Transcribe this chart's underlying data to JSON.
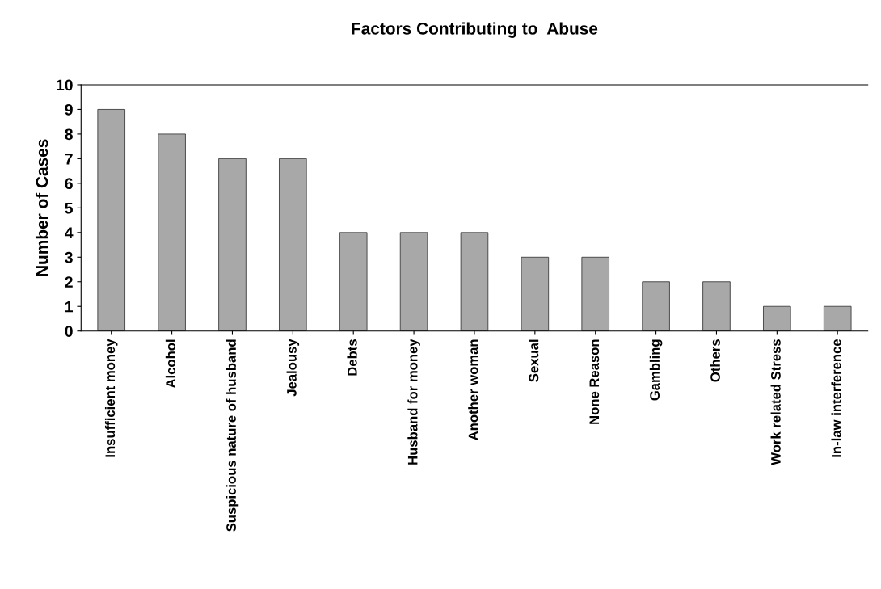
{
  "chart_data": {
    "type": "bar",
    "title": "Factors Contributing to  Abuse",
    "ylabel": "Number of Cases",
    "categories": [
      "Insufficient money",
      "Alcohol",
      "Suspicious nature of husband",
      "Jealousy",
      "Debts",
      "Husband for money",
      "Another woman",
      "Sexual",
      "None Reason",
      "Gambling",
      "Others",
      "Work related Stress",
      "In-law interference"
    ],
    "values": [
      9,
      8,
      7,
      7,
      4,
      4,
      4,
      3,
      3,
      2,
      2,
      1,
      1
    ],
    "color": "#a8a8a8",
    "ylim": [
      0,
      10
    ],
    "yticks": [
      0,
      1,
      2,
      3,
      4,
      5,
      6,
      7,
      8,
      9,
      10
    ],
    "grid": false,
    "legend": false
  }
}
